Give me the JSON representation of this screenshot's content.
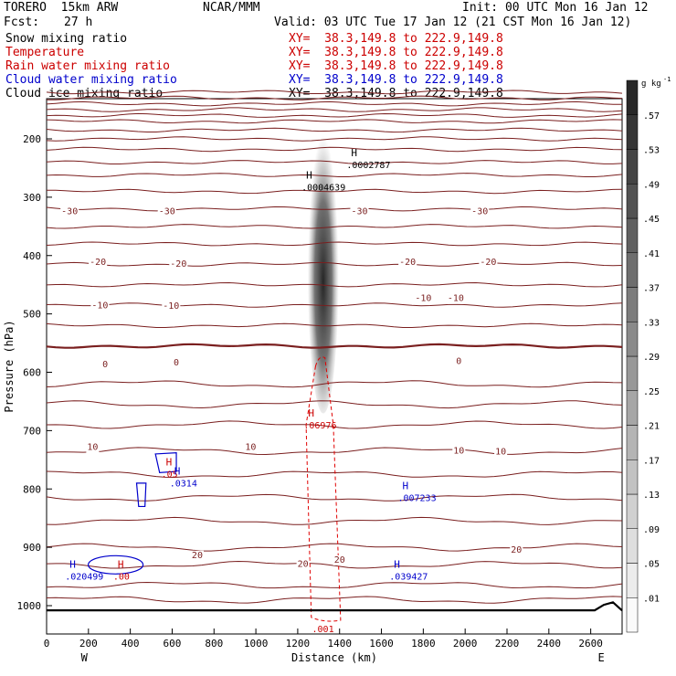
{
  "header": {
    "model": "TORERO  15km ARW",
    "org": "NCAR/MMM",
    "init": "Init: 00 UTC Mon 16 Jan 12",
    "fcst_label": "Fcst:",
    "fcst_value": "27 h",
    "valid": "Valid: 03 UTC Tue 17 Jan 12 (21 CST Mon 16 Jan 12)"
  },
  "fields": [
    {
      "name": "Snow mixing ratio",
      "color": "#000000",
      "xy": "XY=  38.3,149.8 to 222.9,149.8",
      "xy_color": "#cc0000"
    },
    {
      "name": "Temperature",
      "color": "#cc0000",
      "xy": "XY=  38.3,149.8 to 222.9,149.8",
      "xy_color": "#cc0000"
    },
    {
      "name": "Rain water mixing ratio",
      "color": "#cc0000",
      "xy": "XY=  38.3,149.8 to 222.9,149.8",
      "xy_color": "#cc0000"
    },
    {
      "name": "Cloud water mixing ratio",
      "color": "#0000cc",
      "xy": "XY=  38.3,149.8 to 222.9,149.8",
      "xy_color": "#0000cc"
    },
    {
      "name": "Cloud ice mixing ratio",
      "color": "#000000",
      "xy": "XY=  38.3,149.8 to 222.9,149.8",
      "xy_color": "#000000"
    }
  ],
  "colors": {
    "theta": "#7a1f1f",
    "rain": "#e00000",
    "cloud_water": "#0000cc",
    "terrain": "#000000",
    "snow_shade": "#222222"
  },
  "chart_data": {
    "type": "cross-section",
    "xlabel": "Distance (km)",
    "ylabel": "Pressure (hPa)",
    "xlim": [
      0,
      2750
    ],
    "ylim": [
      1050,
      100
    ],
    "x_ticks": [
      0,
      200,
      400,
      600,
      800,
      1000,
      1200,
      1400,
      1600,
      1800,
      2000,
      2200,
      2400,
      2600
    ],
    "y_ticks": [
      200,
      300,
      400,
      500,
      600,
      700,
      800,
      900,
      1000
    ],
    "x_end_labels": {
      "left": "W",
      "right": "E"
    },
    "colorbar": {
      "unit": "g kg",
      "unit_exp": "-1",
      "levels": [
        ".01",
        ".05",
        ".09",
        ".13",
        ".17",
        ".21",
        ".25",
        ".29",
        ".33",
        ".37",
        ".41",
        ".45",
        ".49",
        ".53",
        ".57"
      ]
    },
    "temperature_labels": [
      {
        "x": 110,
        "p": 323,
        "text": "-30"
      },
      {
        "x": 575,
        "p": 323,
        "text": "-30"
      },
      {
        "x": 1495,
        "p": 323,
        "text": "-30"
      },
      {
        "x": 2070,
        "p": 323,
        "text": "-30"
      },
      {
        "x": 245,
        "p": 410,
        "text": "-20"
      },
      {
        "x": 630,
        "p": 413,
        "text": "-20"
      },
      {
        "x": 1725,
        "p": 410,
        "text": "-20"
      },
      {
        "x": 2110,
        "p": 410,
        "text": "-20"
      },
      {
        "x": 255,
        "p": 484,
        "text": "-10"
      },
      {
        "x": 595,
        "p": 485,
        "text": "-10"
      },
      {
        "x": 1800,
        "p": 472,
        "text": "-10"
      },
      {
        "x": 1955,
        "p": 472,
        "text": "-10"
      },
      {
        "x": 280,
        "p": 585,
        "text": "0"
      },
      {
        "x": 620,
        "p": 582,
        "text": "0"
      },
      {
        "x": 1970,
        "p": 580,
        "text": "0"
      },
      {
        "x": 220,
        "p": 727,
        "text": "10"
      },
      {
        "x": 975,
        "p": 727,
        "text": "10"
      },
      {
        "x": 1970,
        "p": 733,
        "text": "10"
      },
      {
        "x": 2170,
        "p": 735,
        "text": "10"
      },
      {
        "x": 720,
        "p": 912,
        "text": "20"
      },
      {
        "x": 1225,
        "p": 927,
        "text": "20"
      },
      {
        "x": 1400,
        "p": 920,
        "text": "20"
      },
      {
        "x": 2245,
        "p": 903,
        "text": "20"
      }
    ],
    "extrema": [
      {
        "x": 1455,
        "p": 230,
        "letter": "H",
        "value": ".0002787",
        "color": "#000000"
      },
      {
        "x": 1240,
        "p": 268,
        "letter": "H",
        "value": ".0004639",
        "color": "#000000"
      },
      {
        "x": 1250,
        "p": 676,
        "letter": "H",
        "value": ".06976",
        "color": "#cc0000"
      },
      {
        "x": 1700,
        "p": 800,
        "letter": "H",
        "value": ".007233",
        "color": "#0000cc"
      },
      {
        "x": 110,
        "p": 935,
        "letter": "H",
        "value": ".020499",
        "color": "#0000cc"
      },
      {
        "x": 340,
        "p": 935,
        "letter": "H",
        "value": ".00",
        "color": "#cc0000"
      },
      {
        "x": 1660,
        "p": 935,
        "letter": "H",
        "value": ".039427",
        "color": "#0000cc"
      },
      {
        "x": 570,
        "p": 760,
        "letter": "H",
        "value": ".05",
        "color": "#cc0000"
      },
      {
        "x": 610,
        "p": 775,
        "letter": "H",
        "value": ".0314",
        "color": "#0000cc"
      },
      {
        "x": 1290,
        "p": 1025,
        "letter": "",
        "value": ".001",
        "color": "#cc0000"
      }
    ]
  }
}
